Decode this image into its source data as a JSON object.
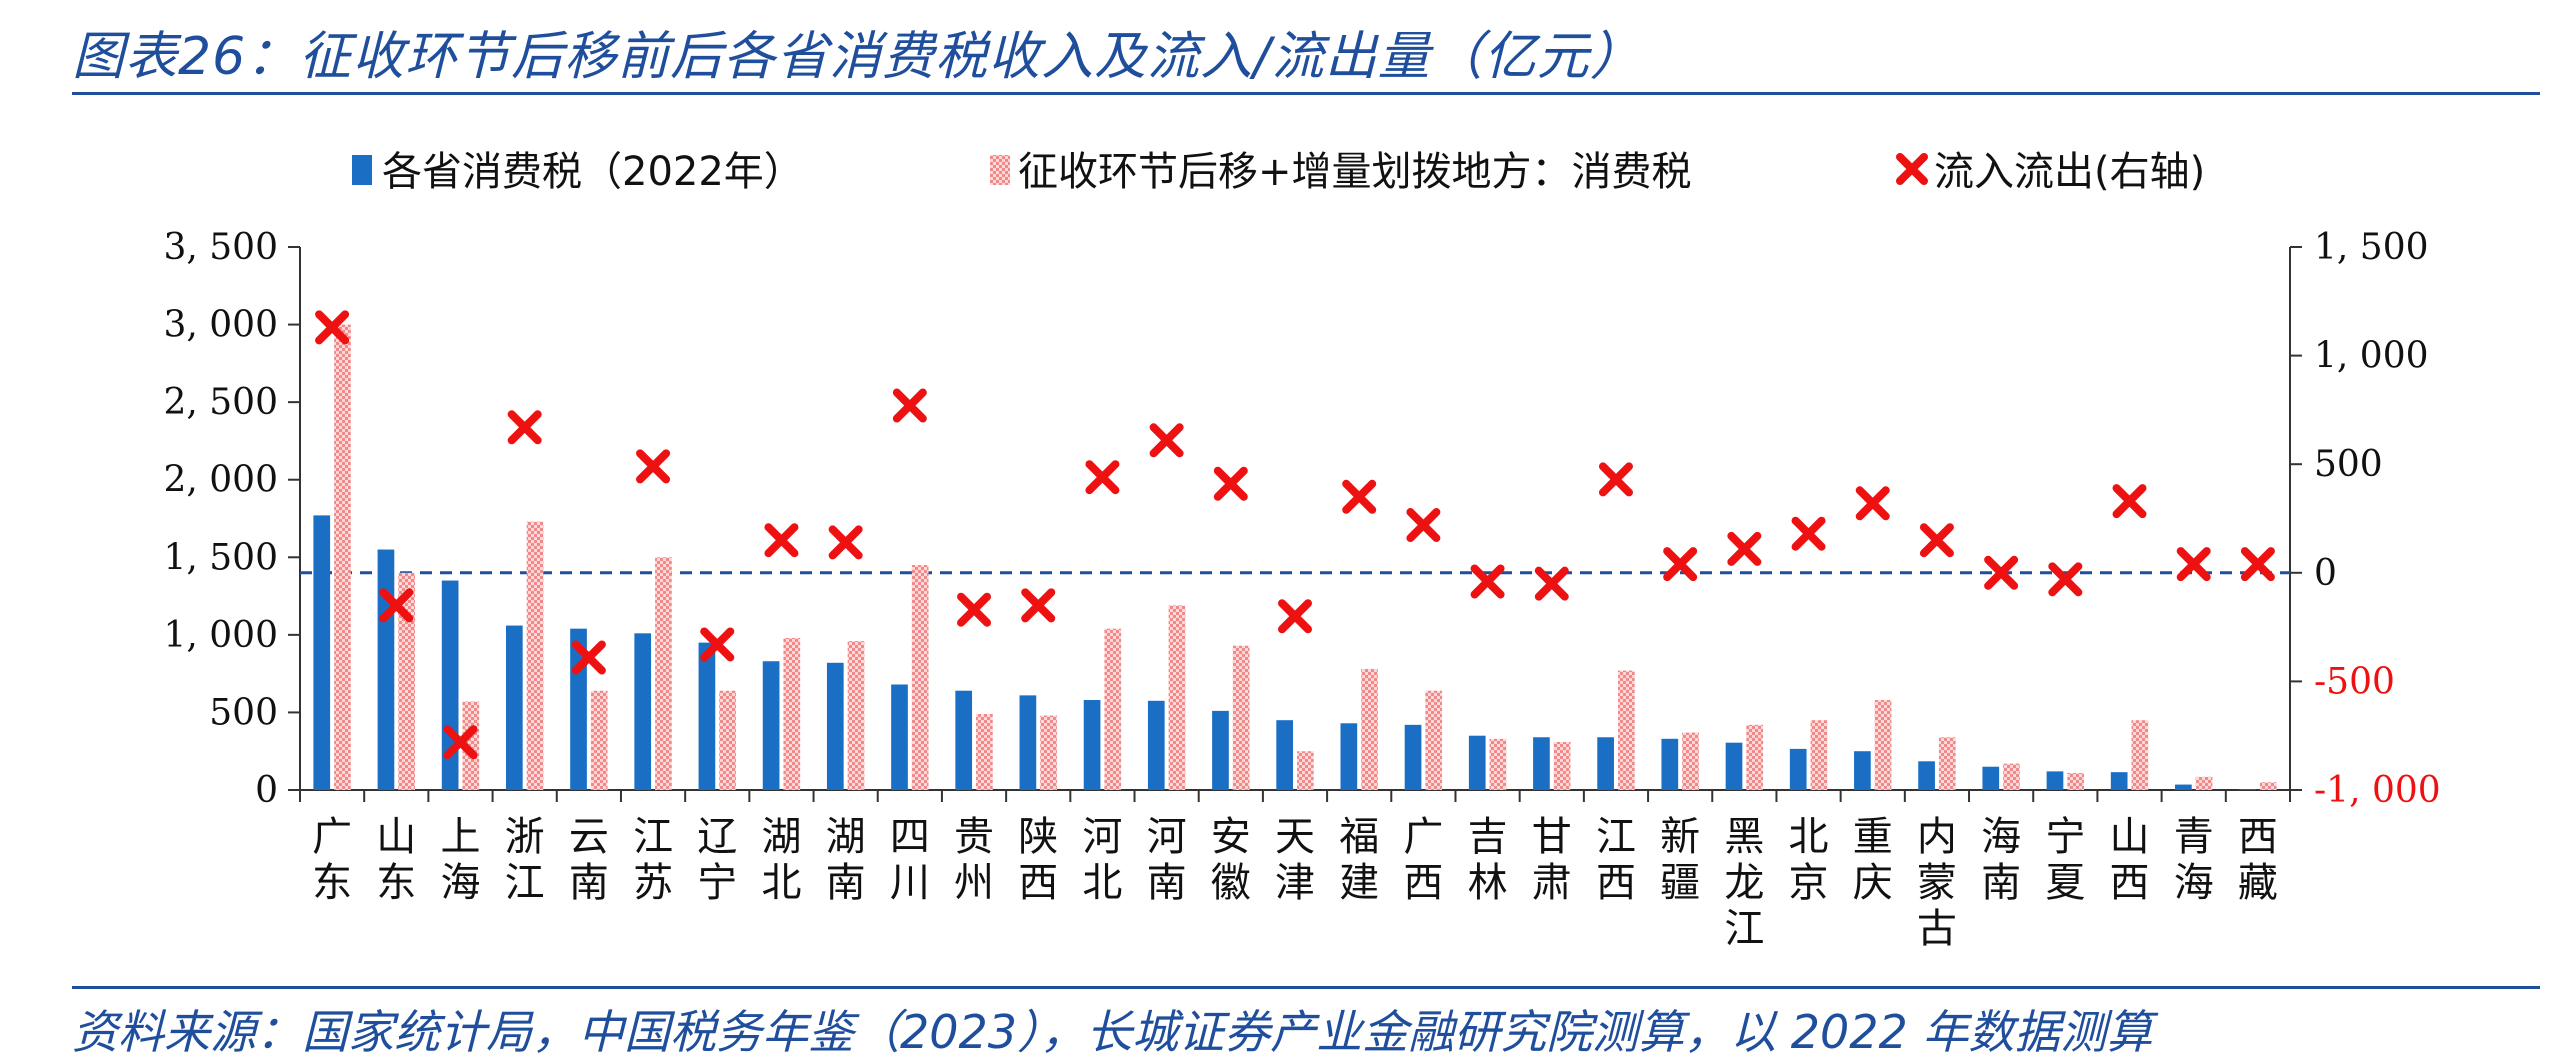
{
  "title": "图表26：征收环节后移前后各省消费税收入及流入/流出量（亿元）",
  "source": "资料来源：国家统计局，中国税务年鉴（2023），长城证券产业金融研究院测算，以 2022 年数据测算",
  "colors": {
    "bar_blue": "#1a6fc4",
    "bar_pink": "#f4a0a0",
    "cross_red": "#ee1111",
    "title_blue": "#1f4e9c",
    "right_axis_red": "#ee1111"
  },
  "chart_data": {
    "type": "bar",
    "categories": [
      [
        "广",
        "东"
      ],
      [
        "山",
        "东"
      ],
      [
        "上",
        "海"
      ],
      [
        "浙",
        "江"
      ],
      [
        "云",
        "南"
      ],
      [
        "江",
        "苏"
      ],
      [
        "辽",
        "宁"
      ],
      [
        "湖",
        "北"
      ],
      [
        "湖",
        "南"
      ],
      [
        "四",
        "川"
      ],
      [
        "贵",
        "州"
      ],
      [
        "陕",
        "西"
      ],
      [
        "河",
        "北"
      ],
      [
        "河",
        "南"
      ],
      [
        "安",
        "徽"
      ],
      [
        "天",
        "津"
      ],
      [
        "福",
        "建"
      ],
      [
        "广",
        "西"
      ],
      [
        "吉",
        "林"
      ],
      [
        "甘",
        "肃"
      ],
      [
        "江",
        "西"
      ],
      [
        "新",
        "疆"
      ],
      [
        "黑",
        "龙",
        "江"
      ],
      [
        "北",
        "京"
      ],
      [
        "重",
        "庆"
      ],
      [
        "内",
        "蒙",
        "古"
      ],
      [
        "海",
        "南"
      ],
      [
        "宁",
        "夏"
      ],
      [
        "山",
        "西"
      ],
      [
        "青",
        "海"
      ],
      [
        "西",
        "藏"
      ]
    ],
    "series": [
      {
        "name": "各省消费税（2022年）",
        "type": "bar",
        "axis": "left",
        "values": [
          1770,
          1550,
          1350,
          1060,
          1040,
          1010,
          950,
          830,
          820,
          680,
          640,
          610,
          580,
          575,
          510,
          450,
          430,
          420,
          350,
          340,
          340,
          330,
          305,
          265,
          250,
          185,
          150,
          120,
          115,
          35,
          5
        ]
      },
      {
        "name": "征收环节后移+增量划拨地方：消费税",
        "type": "bar",
        "axis": "left",
        "values": [
          3000,
          1400,
          570,
          1730,
          640,
          1500,
          640,
          980,
          960,
          1450,
          490,
          480,
          1040,
          1190,
          930,
          250,
          780,
          640,
          330,
          310,
          770,
          370,
          420,
          450,
          580,
          340,
          170,
          110,
          450,
          85,
          50
        ]
      },
      {
        "name": "流入流出(右轴)",
        "type": "scatter",
        "axis": "right",
        "values": [
          1130,
          -150,
          -780,
          670,
          -390,
          490,
          -330,
          150,
          140,
          770,
          -170,
          -150,
          440,
          610,
          410,
          -200,
          350,
          220,
          -40,
          -50,
          430,
          40,
          110,
          180,
          320,
          150,
          0,
          -30,
          330,
          40,
          40
        ]
      }
    ],
    "y_left": {
      "min": 0,
      "max": 3500,
      "ticks": [
        0,
        500,
        1000,
        1500,
        2000,
        2500,
        3000,
        3500
      ],
      "tick_labels": [
        "0",
        "500",
        "1, 000",
        "1, 500",
        "2, 000",
        "2, 500",
        "3, 000",
        "3, 500"
      ]
    },
    "y_right": {
      "min": -1000,
      "max": 1500,
      "ticks": [
        -1000,
        -500,
        0,
        500,
        1000,
        1500
      ],
      "tick_labels": [
        "-1, 000",
        "-500",
        "0",
        "500",
        "1, 000",
        "1, 500"
      ]
    },
    "legend_position": "top",
    "zero_reference_line": "dashed",
    "grid": false
  }
}
